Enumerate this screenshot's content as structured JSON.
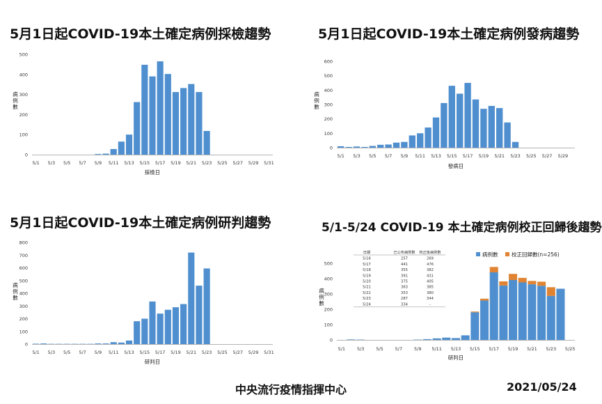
{
  "page": {
    "organization": "中央流行疫情指揮中心",
    "date": "2021/05/24"
  },
  "chart_data": [
    {
      "type": "bar",
      "title": "5月1日起COVID-19本土確定病例採檢趨勢",
      "xlabel": "採檢日",
      "ylabel": "病例數",
      "ylim": [
        0,
        500
      ],
      "yticks": [
        0,
        100,
        200,
        300,
        400,
        500
      ],
      "categories": [
        "5/1",
        "5/2",
        "5/3",
        "5/4",
        "5/5",
        "5/6",
        "5/7",
        "5/8",
        "5/9",
        "5/10",
        "5/11",
        "5/12",
        "5/13",
        "5/14",
        "5/15",
        "5/16",
        "5/17",
        "5/18",
        "5/19",
        "5/20",
        "5/21",
        "5/22",
        "5/23",
        "5/24",
        "5/25",
        "5/26",
        "5/27",
        "5/28",
        "5/29",
        "5/30",
        "5/31"
      ],
      "tick_labels": [
        "5/1",
        "5/3",
        "5/5",
        "5/7",
        "5/9",
        "5/11",
        "5/13",
        "5/15",
        "5/17",
        "5/19",
        "5/21",
        "5/23",
        "5/25",
        "5/27",
        "5/29",
        "5/31"
      ],
      "values": [
        0,
        0,
        0,
        0,
        0,
        0,
        0,
        0,
        3,
        5,
        28,
        65,
        100,
        262,
        448,
        390,
        465,
        402,
        312,
        332,
        352,
        312,
        118,
        0,
        0,
        0,
        0,
        0,
        0,
        0,
        0
      ]
    },
    {
      "type": "bar",
      "title": "5月1日起COVID-19本土確定病例發病趨勢",
      "xlabel": "發病日",
      "ylabel": "病例數",
      "ylim": [
        0,
        600
      ],
      "yticks": [
        0,
        100,
        200,
        300,
        400,
        500,
        600
      ],
      "categories": [
        "5/1",
        "5/2",
        "5/3",
        "5/4",
        "5/5",
        "5/6",
        "5/7",
        "5/8",
        "5/9",
        "5/10",
        "5/11",
        "5/12",
        "5/13",
        "5/14",
        "5/15",
        "5/16",
        "5/17",
        "5/18",
        "5/19",
        "5/20",
        "5/21",
        "5/22",
        "5/23",
        "5/24",
        "5/25",
        "5/26",
        "5/27",
        "5/28",
        "5/29",
        "5/30"
      ],
      "tick_labels": [
        "5/1",
        "5/3",
        "5/5",
        "5/7",
        "5/9",
        "5/11",
        "5/13",
        "5/15",
        "5/17",
        "5/19",
        "5/21",
        "5/23",
        "5/25",
        "5/27",
        "5/29"
      ],
      "values": [
        10,
        5,
        8,
        5,
        12,
        20,
        22,
        35,
        40,
        85,
        100,
        140,
        210,
        310,
        430,
        375,
        450,
        335,
        270,
        290,
        275,
        175,
        40,
        0,
        0,
        0,
        0,
        0,
        0,
        0
      ]
    },
    {
      "type": "bar",
      "title": "5月1日起COVID-19本土確定病例研判趨勢",
      "xlabel": "研判日",
      "ylabel": "病例數",
      "ylim": [
        0,
        800
      ],
      "yticks": [
        0,
        100,
        200,
        300,
        400,
        500,
        600,
        700,
        800
      ],
      "categories": [
        "5/1",
        "5/2",
        "5/3",
        "5/4",
        "5/5",
        "5/6",
        "5/7",
        "5/8",
        "5/9",
        "5/10",
        "5/11",
        "5/12",
        "5/13",
        "5/14",
        "5/15",
        "5/16",
        "5/17",
        "5/18",
        "5/19",
        "5/20",
        "5/21",
        "5/22",
        "5/23",
        "5/24",
        "5/25",
        "5/26",
        "5/27",
        "5/28",
        "5/29",
        "5/30",
        "5/31"
      ],
      "tick_labels": [
        "5/1",
        "5/3",
        "5/5",
        "5/7",
        "5/9",
        "5/11",
        "5/13",
        "5/15",
        "5/17",
        "5/19",
        "5/21",
        "5/23",
        "5/25",
        "5/27",
        "5/29",
        "5/31"
      ],
      "values": [
        3,
        5,
        2,
        2,
        2,
        2,
        2,
        2,
        5,
        5,
        15,
        12,
        28,
        180,
        200,
        335,
        240,
        270,
        290,
        315,
        720,
        460,
        595,
        0,
        0,
        0,
        0,
        0,
        0,
        0,
        0
      ]
    },
    {
      "type": "bar",
      "stacked": true,
      "title": "5/1-5/24 COVID-19 本土確定病例校正回歸後趨勢",
      "xlabel": "研判日",
      "ylabel": "病例數",
      "ylim": [
        0,
        500
      ],
      "yticks": [
        0,
        100,
        200,
        300,
        400,
        500
      ],
      "categories": [
        "5/1",
        "5/2",
        "5/3",
        "5/4",
        "5/5",
        "5/6",
        "5/7",
        "5/8",
        "5/9",
        "5/10",
        "5/11",
        "5/12",
        "5/13",
        "5/14",
        "5/15",
        "5/16",
        "5/17",
        "5/18",
        "5/19",
        "5/20",
        "5/21",
        "5/22",
        "5/23",
        "5/24",
        "5/25"
      ],
      "tick_labels": [
        "5/1",
        "5/3",
        "5/5",
        "5/7",
        "5/9",
        "5/11",
        "5/13",
        "5/15",
        "5/17",
        "5/19",
        "5/21",
        "5/23",
        "5/25"
      ],
      "series": [
        {
          "name": "病例數",
          "color": "#4f8fcf",
          "values": [
            0,
            3,
            2,
            0,
            0,
            0,
            0,
            0,
            2,
            5,
            10,
            15,
            12,
            30,
            180,
            257,
            441,
            355,
            391,
            375,
            363,
            353,
            287,
            334,
            0
          ]
        },
        {
          "name": "校正回歸數(n=256)",
          "color": "#e08434",
          "values": [
            0,
            0,
            0,
            0,
            0,
            0,
            0,
            0,
            0,
            0,
            0,
            0,
            0,
            0,
            5,
            12,
            35,
            27,
            40,
            30,
            22,
            27,
            57,
            0,
            0
          ]
        }
      ],
      "table": {
        "headers": [
          "日期",
          "已公布病例數",
          "校正後病例數"
        ],
        "rows": [
          [
            "5/16",
            "257",
            "269"
          ],
          [
            "5/17",
            "441",
            "476"
          ],
          [
            "5/18",
            "355",
            "382"
          ],
          [
            "5/19",
            "391",
            "431"
          ],
          [
            "5/20",
            "375",
            "405"
          ],
          [
            "5/21",
            "363",
            "385"
          ],
          [
            "5/22",
            "353",
            "380"
          ],
          [
            "5/23",
            "287",
            "344"
          ],
          [
            "5/24",
            "334",
            "-"
          ]
        ]
      }
    }
  ]
}
